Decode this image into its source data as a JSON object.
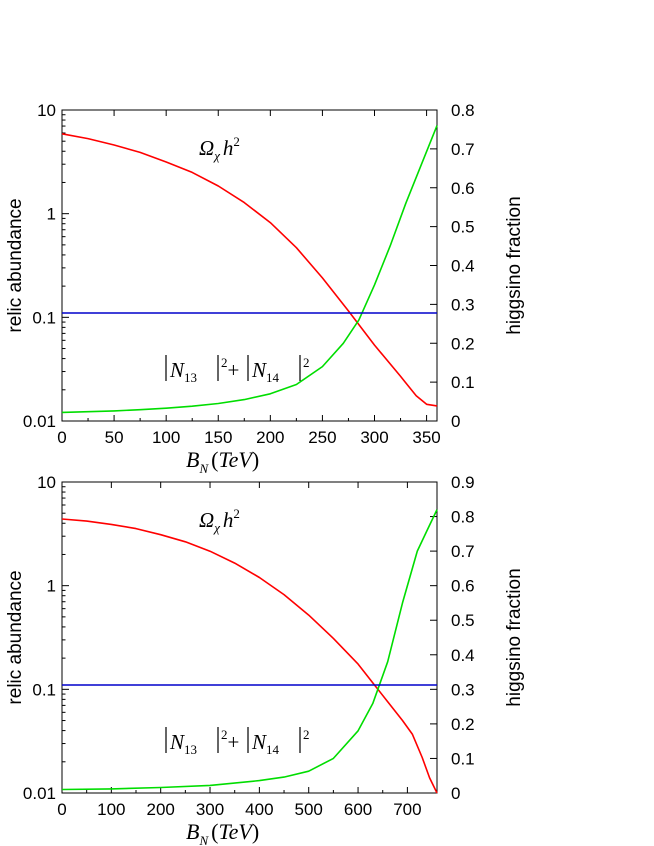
{
  "chart_data": [
    {
      "type": "line",
      "xlim": [
        0,
        360
      ],
      "x_ticks": [
        "0",
        "50",
        "100",
        "150",
        "200",
        "250",
        "300",
        "350"
      ],
      "x_tick_values": [
        0,
        50,
        100,
        150,
        200,
        250,
        300,
        350
      ],
      "xlabel": {
        "var": "B",
        "sub": "N",
        "unit": "TeV"
      },
      "y_left": {
        "label": "relic abundance",
        "scale": "log",
        "lim": [
          0.01,
          10
        ],
        "ticks": [
          "0.01",
          "0.1",
          "1",
          "10"
        ],
        "tick_values": [
          0.01,
          0.1,
          1,
          10
        ]
      },
      "y_right": {
        "label": "higgsino fraction",
        "scale": "linear",
        "lim": [
          0,
          0.8
        ],
        "ticks": [
          "0",
          "0.1",
          "0.2",
          "0.3",
          "0.4",
          "0.5",
          "0.6",
          "0.7",
          "0.8"
        ],
        "tick_values": [
          0,
          0.1,
          0.2,
          0.3,
          0.4,
          0.5,
          0.6,
          0.7,
          0.8
        ]
      },
      "annotations": {
        "omega": {
          "sym": "Ω",
          "sub": "χ",
          "var": "h",
          "sup": "2"
        },
        "n_frac": {
          "a": "N",
          "a_sub": "13",
          "b": "N",
          "b_sub": "14",
          "sup": "2",
          "plus": "+"
        }
      },
      "series": [
        {
          "axis": "left",
          "color": "#ff0000",
          "x": [
            0,
            25,
            50,
            75,
            100,
            125,
            150,
            175,
            200,
            225,
            250,
            275,
            300,
            325,
            340,
            350,
            360
          ],
          "values": [
            5.9,
            5.3,
            4.6,
            3.9,
            3.15,
            2.5,
            1.85,
            1.28,
            0.82,
            0.47,
            0.24,
            0.115,
            0.054,
            0.027,
            0.0175,
            0.0145,
            0.014
          ]
        },
        {
          "axis": "right",
          "color": "#00dd00",
          "x": [
            0,
            25,
            50,
            75,
            100,
            125,
            150,
            175,
            200,
            225,
            250,
            270,
            285,
            300,
            315,
            330,
            345,
            360
          ],
          "values": [
            0.022,
            0.024,
            0.026,
            0.029,
            0.033,
            0.038,
            0.045,
            0.055,
            0.07,
            0.094,
            0.14,
            0.2,
            0.26,
            0.35,
            0.45,
            0.56,
            0.66,
            0.76
          ]
        },
        {
          "axis": "left",
          "color": "#0000cc",
          "x": [
            0,
            360
          ],
          "values": [
            0.11,
            0.11
          ]
        }
      ]
    },
    {
      "type": "line",
      "xlim": [
        0,
        760
      ],
      "x_ticks": [
        "0",
        "100",
        "200",
        "300",
        "400",
        "500",
        "600",
        "700"
      ],
      "x_tick_values": [
        0,
        100,
        200,
        300,
        400,
        500,
        600,
        700
      ],
      "xlabel": {
        "var": "B",
        "sub": "N",
        "unit": "TeV"
      },
      "y_left": {
        "label": "relic abundance",
        "scale": "log",
        "lim": [
          0.01,
          10
        ],
        "ticks": [
          "0.01",
          "0.1",
          "1",
          "10"
        ],
        "tick_values": [
          0.01,
          0.1,
          1,
          10
        ]
      },
      "y_right": {
        "label": "higgsino fraction",
        "scale": "linear",
        "lim": [
          0,
          0.9
        ],
        "ticks": [
          "0",
          "0.1",
          "0.2",
          "0.3",
          "0.4",
          "0.5",
          "0.6",
          "0.7",
          "0.8",
          "0.9"
        ],
        "tick_values": [
          0,
          0.1,
          0.2,
          0.3,
          0.4,
          0.5,
          0.6,
          0.7,
          0.8,
          0.9
        ]
      },
      "annotations": {
        "omega": {
          "sym": "Ω",
          "sub": "χ",
          "var": "h",
          "sup": "2"
        },
        "n_frac": {
          "a": "N",
          "a_sub": "13",
          "b": "N",
          "b_sub": "14",
          "sup": "2",
          "plus": "+"
        }
      },
      "series": [
        {
          "axis": "left",
          "color": "#ff0000",
          "x": [
            0,
            50,
            100,
            150,
            200,
            250,
            300,
            350,
            400,
            450,
            500,
            550,
            600,
            630,
            660,
            690,
            710,
            730,
            745,
            760
          ],
          "values": [
            4.4,
            4.2,
            3.9,
            3.55,
            3.1,
            2.65,
            2.15,
            1.65,
            1.2,
            0.82,
            0.52,
            0.31,
            0.175,
            0.115,
            0.076,
            0.05,
            0.037,
            0.022,
            0.014,
            0.01
          ]
        },
        {
          "axis": "right",
          "color": "#00dd00",
          "x": [
            0,
            100,
            200,
            300,
            400,
            450,
            500,
            550,
            600,
            630,
            660,
            690,
            720,
            740,
            760
          ],
          "values": [
            0.01,
            0.012,
            0.016,
            0.022,
            0.036,
            0.046,
            0.063,
            0.1,
            0.18,
            0.26,
            0.38,
            0.55,
            0.7,
            0.76,
            0.82
          ]
        },
        {
          "axis": "left",
          "color": "#0000cc",
          "x": [
            0,
            760
          ],
          "values": [
            0.11,
            0.11
          ]
        }
      ]
    }
  ]
}
